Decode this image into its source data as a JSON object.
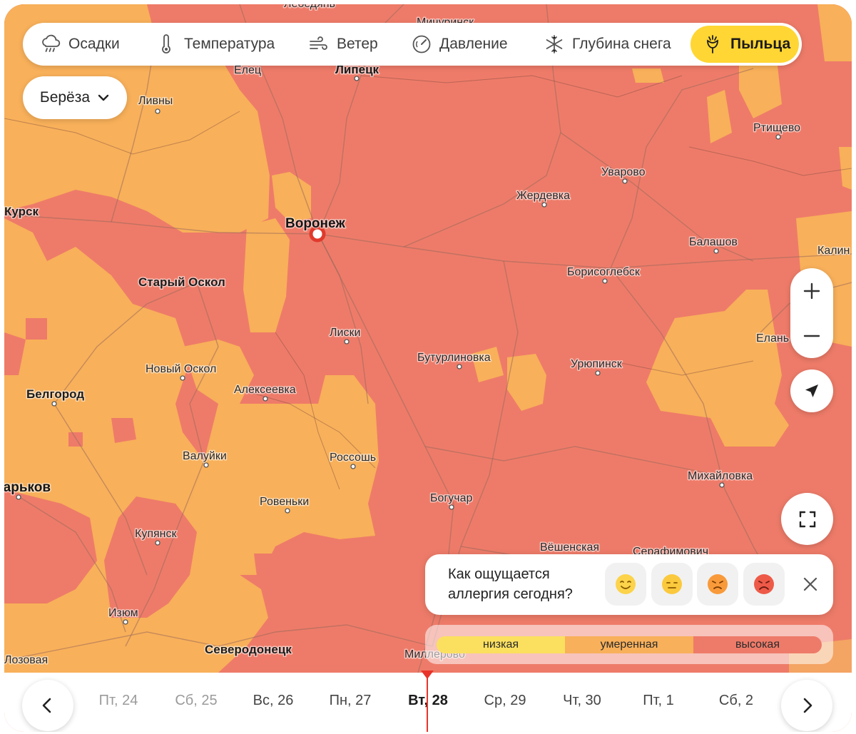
{
  "layer_tabs": [
    {
      "label": "Осадки",
      "icon": "cloud-rain-icon"
    },
    {
      "label": "Температура",
      "icon": "thermometer-icon"
    },
    {
      "label": "Ветер",
      "icon": "wind-icon"
    },
    {
      "label": "Давление",
      "icon": "gauge-icon"
    },
    {
      "label": "Глубина снега",
      "icon": "snowflake-icon"
    },
    {
      "label": "Пыльца",
      "icon": "flower-icon",
      "active": true
    }
  ],
  "species_select": {
    "value": "Берёза",
    "icon": "chevron-down-icon"
  },
  "cities": [
    "Лебедянь",
    "Мичуринск",
    "Елец",
    "Липецк",
    "Ливны",
    "Ртищево",
    "Уварово",
    "Жердевка",
    "Курск",
    "Воронеж",
    "Балашов",
    "Калин",
    "Старый Оскол",
    "Борисоглебск",
    "Лиски",
    "Елань",
    "Бутурлиновка",
    "Урюпинск",
    "Новый Оскол",
    "Алексеевка",
    "Белгород",
    "Валуйки",
    "Россошь",
    "Михайловка",
    "Харьков",
    "Ровеньки",
    "Богучар",
    "Купянск",
    "Вёшенская",
    "Серафимович",
    "Изюм",
    "Северодонецк",
    "Миллерово",
    "Лозовая"
  ],
  "survey": {
    "question": "Как ощущается аллергия сегодня?",
    "options": [
      "happy-face-icon",
      "neutral-face-icon",
      "sad-face-icon",
      "unhappy-face-icon"
    ],
    "close_icon": "close-icon"
  },
  "legend": [
    {
      "label": "низкая",
      "color": "#fbe05f"
    },
    {
      "label": "умеренная",
      "color": "#f8b05a"
    },
    {
      "label": "высокая",
      "color": "#ee7b69"
    }
  ],
  "timeline": {
    "days": [
      "Пт, 24",
      "Сб, 25",
      "Вс, 26",
      "Пн, 27",
      "Вт, 28",
      "Ср, 29",
      "Чт, 30",
      "Пт, 1",
      "Сб, 2"
    ],
    "current": "Вт, 28",
    "prev_icon": "chevron-left-icon",
    "next_icon": "chevron-right-icon"
  },
  "colors": {
    "high": "#ee7b69",
    "moderate": "#f8b05a",
    "low": "#fbe05f",
    "active_tab": "#ffd633",
    "now_marker": "#e8332a"
  }
}
